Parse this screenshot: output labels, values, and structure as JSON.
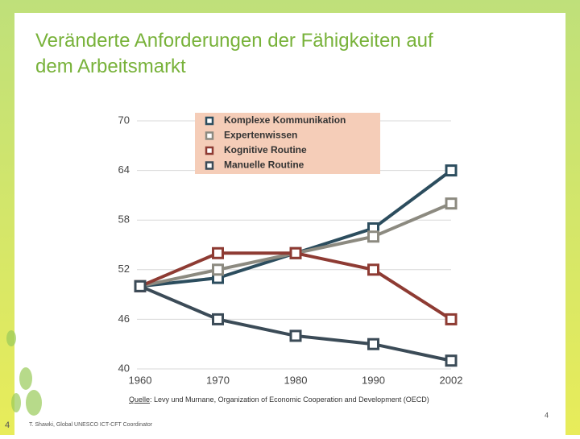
{
  "slide": {
    "title": "Veränderte Anforderungen der Fähigkeiten auf dem Arbeitsmarkt",
    "source_prefix": "Quelle",
    "source": ": Levy und Murnane, Organization of Economic Cooperation and Development (OECD)",
    "footer": "T. Shawki, Global UNESCO ICT-CFT Coordinator",
    "page_number_left": "4",
    "page_number_right": "4"
  },
  "chart_data": {
    "type": "line",
    "categories": [
      "1960",
      "1970",
      "1980",
      "1990",
      "2002"
    ],
    "series": [
      {
        "name": "Komplexe Kommunikation",
        "color": "#2c4d5e",
        "values": [
          50,
          51,
          54,
          57,
          64
        ]
      },
      {
        "name": "Expertenwissen",
        "color": "#8c8a80",
        "values": [
          50,
          52,
          54,
          56,
          60
        ]
      },
      {
        "name": "Kognitive Routine",
        "color": "#8e3b33",
        "values": [
          50,
          54,
          54,
          52,
          46
        ]
      },
      {
        "name": "Manuelle Routine",
        "color": "#3b4b57",
        "values": [
          50,
          46,
          44,
          43,
          41
        ]
      }
    ],
    "ylim": [
      40,
      70
    ],
    "yticks": [
      40,
      46,
      52,
      58,
      64,
      70
    ],
    "grid": true,
    "legend": "top"
  }
}
